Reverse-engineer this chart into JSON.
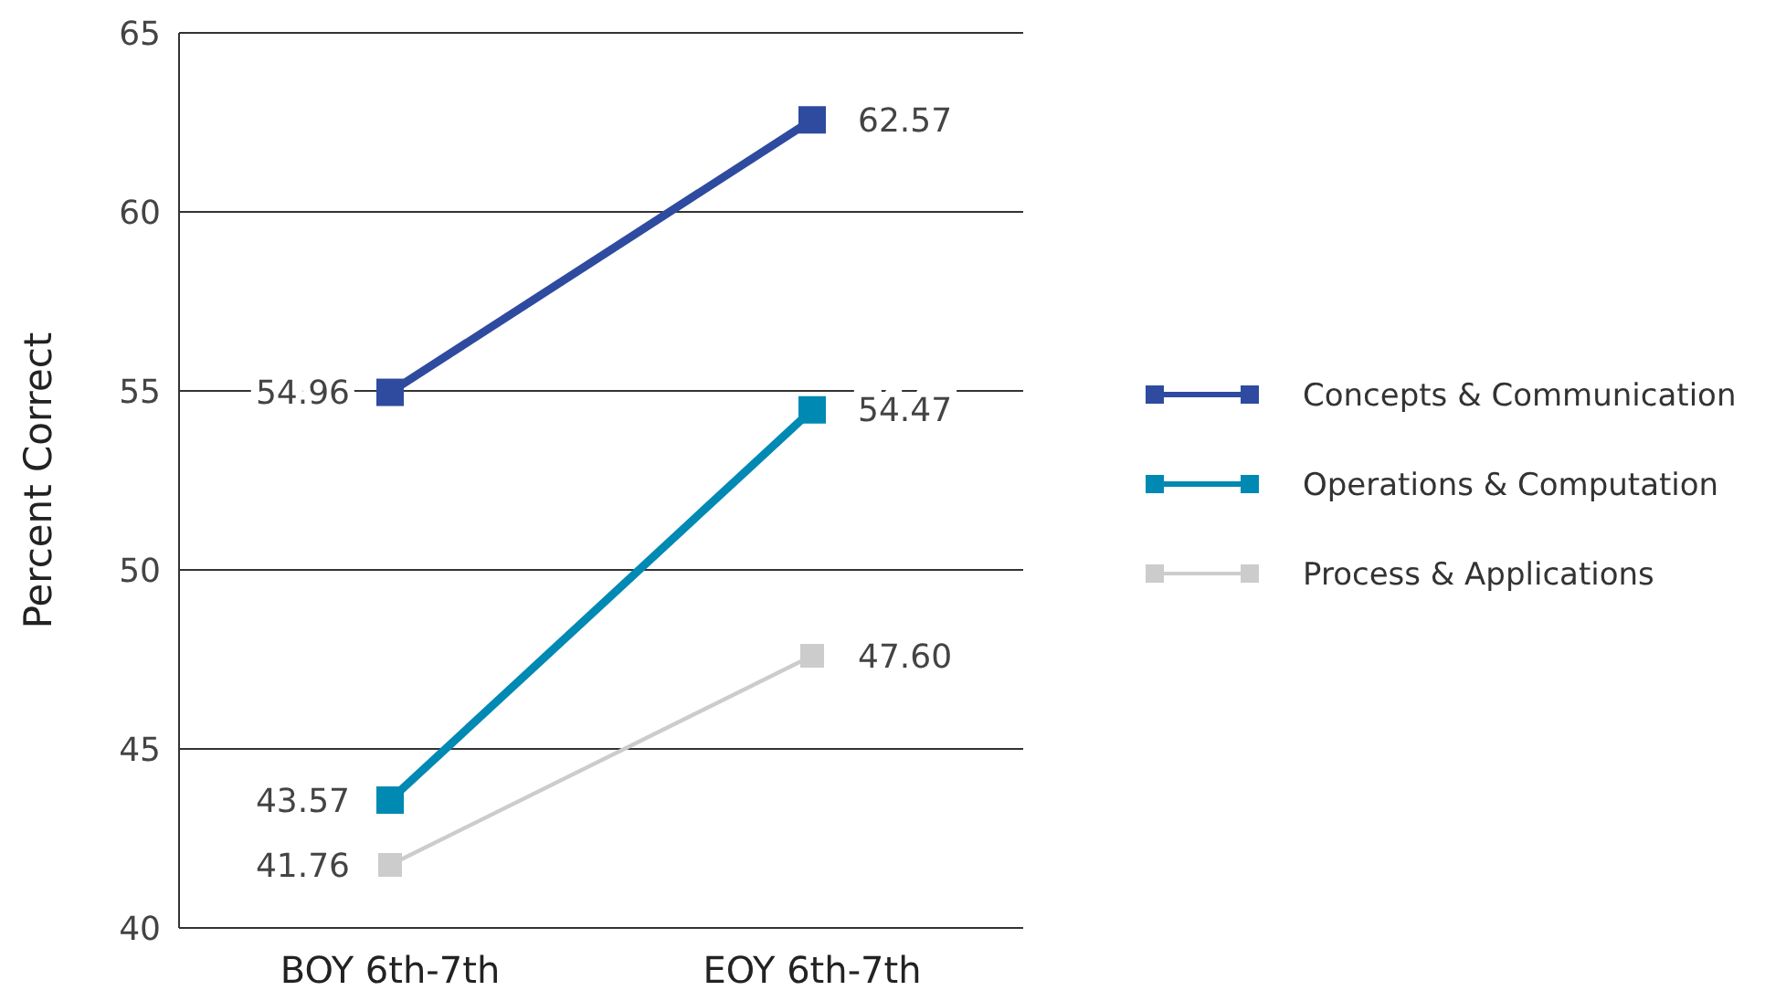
{
  "chart_data": {
    "type": "line",
    "ylabel": "Percent Correct",
    "categories": [
      "BOY 6th-7th",
      "EOY 6th-7th"
    ],
    "ylim": [
      40,
      65
    ],
    "yticks": [
      40,
      45,
      50,
      55,
      60,
      65
    ],
    "grid": "y",
    "legend": "right",
    "marker": "square",
    "line_style": "solid",
    "series": [
      {
        "name": "Concepts & Communication",
        "color": "#2e4b9f",
        "values": [
          54.96,
          62.57
        ],
        "value_labels": [
          "54.96",
          "62.57"
        ]
      },
      {
        "name": "Operations & Computation",
        "color": "#0089b3",
        "values": [
          43.57,
          54.47
        ],
        "value_labels": [
          "43.57",
          "54.47"
        ]
      },
      {
        "name": "Process & Applications",
        "color": "#cccccc",
        "values": [
          41.76,
          47.6
        ],
        "value_labels": [
          "41.76",
          "47.60"
        ]
      }
    ]
  }
}
